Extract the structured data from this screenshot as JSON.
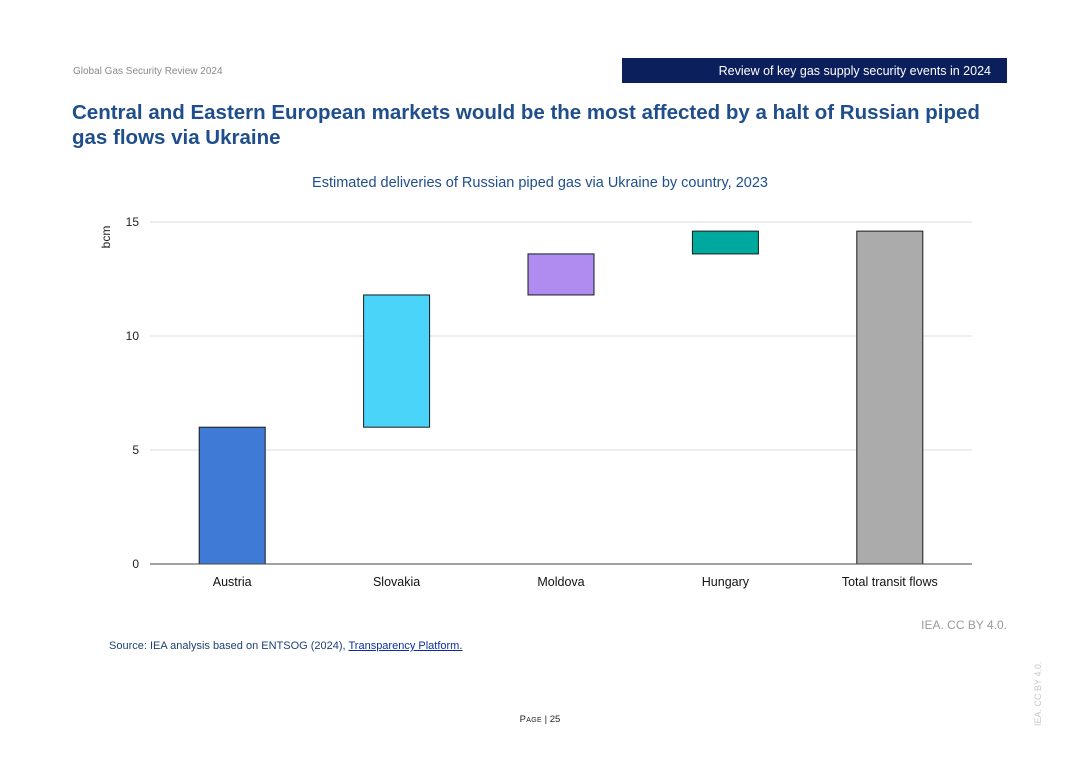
{
  "header": {
    "report_title": "Global Gas Security Review 2024",
    "section_banner": "Review of key gas supply security events in 2024"
  },
  "headline": "Central and Eastern European markets would be the most affected by a halt of Russian piped gas flows via Ukraine",
  "chart_data": {
    "type": "bar",
    "subtype": "waterfall",
    "title": "Estimated deliveries of Russian piped gas via Ukraine by country, 2023",
    "xlabel": "",
    "ylabel": "bcm",
    "ylim": [
      0,
      15
    ],
    "yticks": [
      "0",
      "5",
      "10",
      "15"
    ],
    "grid": true,
    "categories": [
      "Austria",
      "Slovakia",
      "Moldova",
      "Hungary",
      "Total transit flows"
    ],
    "values": [
      6.0,
      5.8,
      1.8,
      1.0,
      14.6
    ],
    "bases": [
      0,
      6.0,
      11.8,
      13.6,
      0
    ],
    "colors": [
      "#3f7bd6",
      "#4bd4fa",
      "#b08cf0",
      "#00a99d",
      "#ababab"
    ]
  },
  "credit": "IEA. CC BY 4.0.",
  "source": {
    "prefix": "Source: IEA analysis based on ENTSOG (2024), ",
    "link_text": "Transparency Platform."
  },
  "footer": {
    "page_label": "Page",
    "page_number": "| 25",
    "side_credit": "IEA. CC BY 4.0."
  }
}
